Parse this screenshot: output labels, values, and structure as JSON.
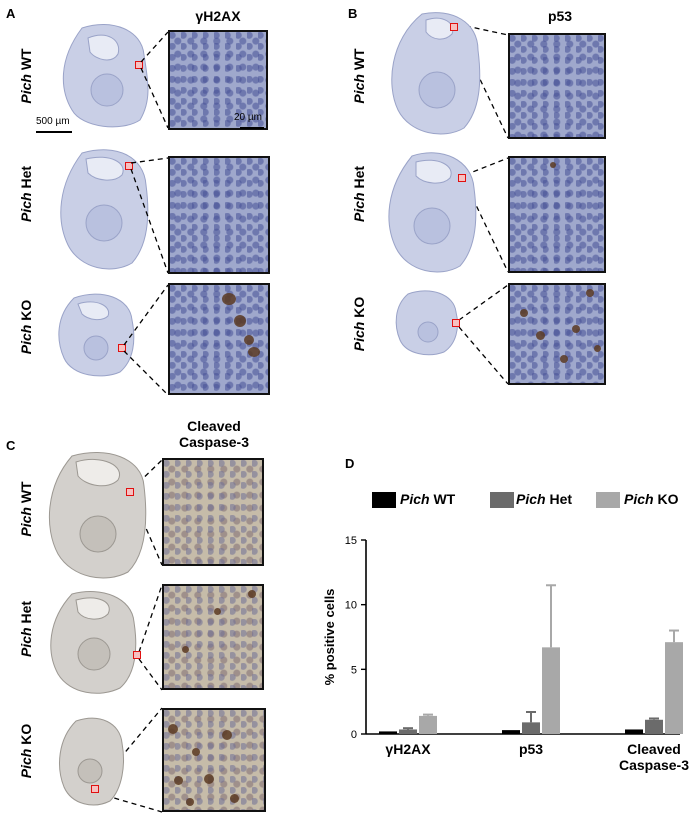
{
  "panels": {
    "A": {
      "letter": "A",
      "stain": "γH2AX"
    },
    "B": {
      "letter": "B",
      "stain": "p53"
    },
    "C": {
      "letter": "C",
      "stain_line1": "Cleaved",
      "stain_line2": "Caspase-3"
    },
    "D": {
      "letter": "D"
    }
  },
  "genotypes": {
    "gene": "Pich",
    "wt": "WT",
    "het": "Het",
    "ko": "KO"
  },
  "scale": {
    "embryo": "500 µm",
    "inset": "20 µm"
  },
  "legend": [
    {
      "gene": "Pich",
      "genotype": "WT",
      "color": "#000000"
    },
    {
      "gene": "Pich",
      "genotype": "Het",
      "color": "#6b6b6b"
    },
    {
      "gene": "Pich",
      "genotype": "KO",
      "color": "#a8a8a8"
    }
  ],
  "chart_data": {
    "type": "bar",
    "categories": [
      "γH2AX",
      "p53",
      "Cleaved Caspase-3"
    ],
    "category_lines": [
      [
        "γH2AX"
      ],
      [
        "p53"
      ],
      [
        "Cleaved",
        "Caspase-3"
      ]
    ],
    "series": [
      {
        "name": "Pich WT",
        "color": "#000000",
        "values": [
          0.2,
          0.3,
          0.35
        ],
        "errors": [
          0.05,
          0.05,
          0.05
        ]
      },
      {
        "name": "Pich Het",
        "color": "#6b6b6b",
        "values": [
          0.35,
          0.9,
          1.1
        ],
        "errors": [
          0.1,
          0.8,
          0.1
        ]
      },
      {
        "name": "Pich KO",
        "color": "#a8a8a8",
        "values": [
          1.4,
          6.7,
          7.1
        ],
        "errors": [
          0.1,
          4.8,
          0.9
        ]
      }
    ],
    "ylabel": "% positive cells",
    "yticks": [
      "0",
      "5",
      "10",
      "15"
    ],
    "ylim": [
      0,
      15
    ]
  }
}
